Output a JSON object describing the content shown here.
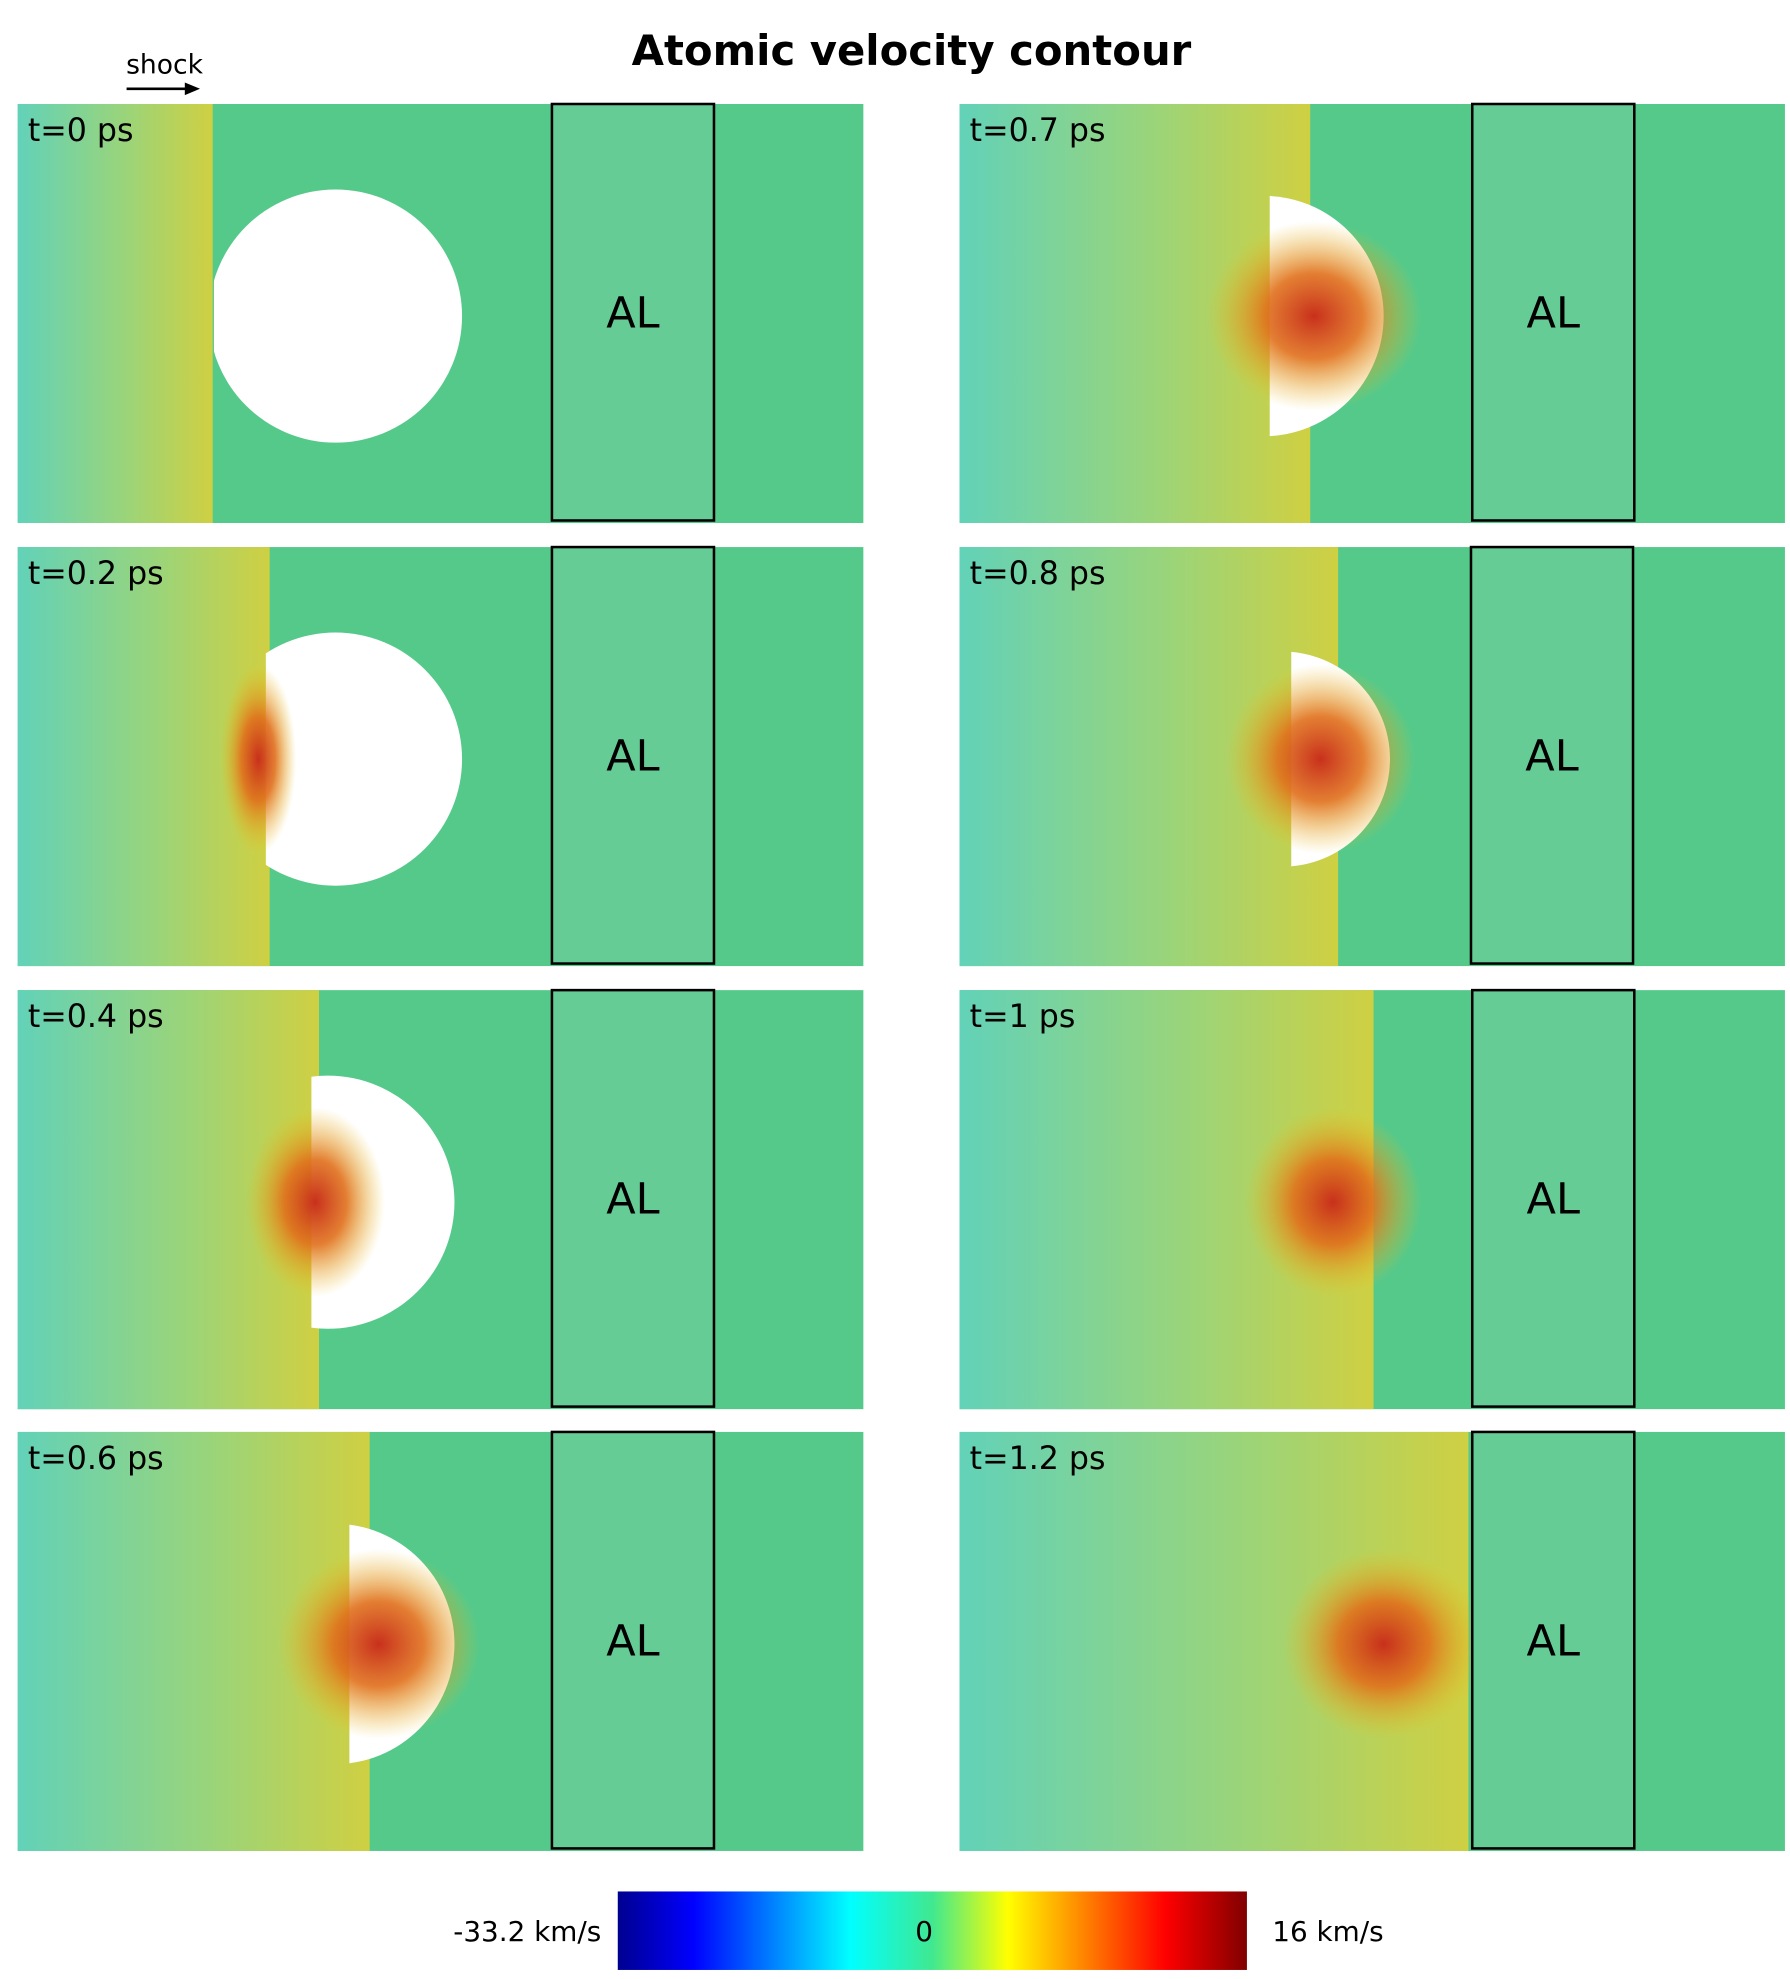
{
  "title": "Atomic velocity contour",
  "shock_label": "shock",
  "panels": [
    {
      "time": "t=0 ps",
      "material": "AL"
    },
    {
      "time": "t=0.2 ps",
      "material": "AL"
    },
    {
      "time": "t=0.4 ps",
      "material": "AL"
    },
    {
      "time": "t=0.6 ps",
      "material": "AL"
    },
    {
      "time": "t=0.7 ps",
      "material": "AL"
    },
    {
      "time": "t=0.8 ps",
      "material": "AL"
    },
    {
      "time": "t=1 ps",
      "material": "AL"
    },
    {
      "time": "t=1.2 ps",
      "material": "AL"
    }
  ],
  "colorbar": {
    "min_label": "-33.2 km/s",
    "mid_label": "0",
    "max_label": "16 km/s"
  }
}
